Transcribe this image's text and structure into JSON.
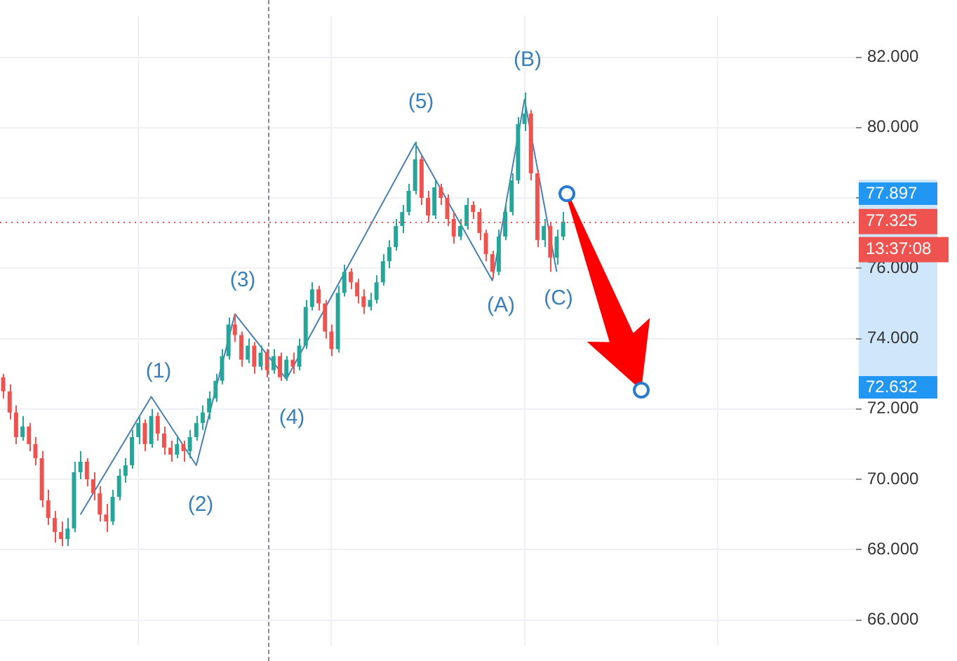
{
  "chart_data": {
    "type": "candlestick",
    "categories": [
      null,
      null,
      null,
      null,
      null,
      null,
      null,
      null,
      null,
      null,
      null,
      null,
      null,
      null,
      null,
      null,
      null,
      null,
      null,
      null,
      null,
      null,
      null,
      null,
      null,
      null,
      null,
      null,
      null,
      null,
      null,
      null,
      null,
      null,
      null,
      null,
      null,
      null,
      null,
      null,
      null,
      null,
      null,
      null,
      null,
      null,
      null,
      null,
      null,
      null,
      null,
      null,
      null,
      null,
      null,
      null,
      null,
      null,
      null,
      null,
      null,
      null,
      null,
      null,
      null,
      null,
      null,
      null,
      null,
      null,
      null,
      null,
      null,
      null,
      null,
      null,
      null,
      null,
      null,
      null,
      null,
      null,
      null,
      null,
      null,
      null,
      null,
      null,
      null,
      null,
      null,
      null,
      null,
      null,
      null,
      null,
      null,
      null,
      null,
      null,
      null,
      null,
      null,
      null,
      null,
      null,
      null,
      null,
      null,
      null,
      null,
      null,
      null,
      null,
      null,
      null,
      null,
      null,
      null,
      null,
      null,
      null,
      null,
      null,
      null,
      null,
      null,
      null,
      null,
      null,
      null,
      null,
      null
    ],
    "series": [
      {
        "ohlc": [
          [
            72.9,
            73.0,
            72.3,
            72.5
          ],
          [
            72.5,
            72.7,
            71.7,
            71.9
          ],
          [
            71.9,
            72.1,
            71.0,
            71.2
          ],
          [
            71.2,
            71.8,
            71.1,
            71.5
          ],
          [
            71.5,
            71.6,
            70.8,
            71.0
          ],
          [
            71.0,
            71.2,
            70.4,
            70.6
          ],
          [
            70.6,
            70.8,
            69.2,
            69.4
          ],
          [
            69.4,
            69.7,
            68.7,
            68.9
          ],
          [
            68.9,
            69.1,
            68.2,
            68.5
          ],
          [
            68.5,
            68.8,
            68.1,
            68.3
          ],
          [
            68.3,
            68.9,
            68.1,
            68.6
          ],
          [
            68.6,
            70.5,
            68.5,
            70.2
          ],
          [
            70.2,
            70.8,
            70.0,
            70.5
          ],
          [
            70.5,
            70.6,
            69.8,
            70.0
          ],
          [
            70.0,
            70.2,
            69.4,
            69.6
          ],
          [
            69.6,
            69.8,
            68.8,
            69.0
          ],
          [
            69.0,
            69.3,
            68.5,
            68.8
          ],
          [
            68.8,
            69.7,
            68.7,
            69.5
          ],
          [
            69.5,
            70.3,
            69.4,
            70.1
          ],
          [
            70.1,
            70.6,
            69.9,
            70.4
          ],
          [
            70.4,
            71.4,
            70.3,
            71.2
          ],
          [
            71.2,
            71.8,
            71.0,
            71.6
          ],
          [
            71.6,
            71.7,
            70.8,
            71.0
          ],
          [
            71.0,
            72.0,
            70.9,
            71.8
          ],
          [
            71.8,
            71.9,
            71.1,
            71.3
          ],
          [
            71.3,
            71.5,
            70.7,
            70.9
          ],
          [
            70.9,
            71.1,
            70.5,
            70.7
          ],
          [
            70.7,
            71.2,
            70.6,
            71.0
          ],
          [
            71.0,
            71.1,
            70.5,
            70.8
          ],
          [
            70.8,
            71.4,
            70.6,
            71.2
          ],
          [
            71.2,
            71.8,
            71.1,
            71.6
          ],
          [
            71.6,
            72.1,
            71.4,
            71.9
          ],
          [
            71.9,
            72.5,
            71.7,
            72.3
          ],
          [
            72.3,
            73.0,
            72.2,
            72.8
          ],
          [
            72.8,
            73.7,
            72.7,
            73.5
          ],
          [
            73.5,
            74.6,
            73.4,
            74.4
          ],
          [
            74.4,
            74.7,
            73.9,
            74.1
          ],
          [
            74.1,
            74.2,
            73.2,
            73.4
          ],
          [
            73.4,
            74.0,
            73.3,
            73.8
          ],
          [
            73.8,
            73.9,
            73.0,
            73.2
          ],
          [
            73.2,
            73.8,
            73.1,
            73.6
          ],
          [
            73.6,
            73.7,
            72.9,
            73.1
          ],
          [
            73.1,
            73.7,
            73.0,
            73.5
          ],
          [
            73.5,
            73.6,
            72.8,
            72.9
          ],
          [
            72.9,
            73.5,
            72.8,
            73.4
          ],
          [
            73.4,
            73.6,
            73.0,
            73.2
          ],
          [
            73.2,
            74.0,
            73.1,
            73.8
          ],
          [
            73.8,
            75.1,
            73.7,
            74.9
          ],
          [
            74.9,
            75.6,
            74.8,
            75.4
          ],
          [
            75.4,
            75.5,
            74.8,
            75.0
          ],
          [
            75.0,
            75.1,
            74.0,
            74.2
          ],
          [
            74.2,
            74.4,
            73.5,
            73.7
          ],
          [
            73.7,
            75.5,
            73.6,
            75.3
          ],
          [
            75.3,
            76.1,
            75.2,
            75.9
          ],
          [
            75.9,
            76.0,
            75.4,
            75.6
          ],
          [
            75.6,
            75.7,
            75.0,
            75.2
          ],
          [
            75.2,
            75.4,
            74.7,
            74.9
          ],
          [
            74.9,
            75.3,
            74.8,
            75.1
          ],
          [
            75.1,
            75.8,
            75.0,
            75.6
          ],
          [
            75.6,
            76.4,
            75.5,
            76.2
          ],
          [
            76.2,
            76.8,
            76.0,
            76.6
          ],
          [
            76.6,
            77.4,
            76.5,
            77.2
          ],
          [
            77.2,
            77.8,
            77.0,
            77.6
          ],
          [
            77.6,
            78.4,
            77.5,
            78.2
          ],
          [
            78.2,
            79.6,
            78.1,
            79.1
          ],
          [
            79.1,
            79.2,
            77.8,
            78.0
          ],
          [
            78.0,
            78.2,
            77.3,
            77.5
          ],
          [
            77.5,
            78.5,
            77.4,
            78.3
          ],
          [
            78.3,
            78.4,
            77.8,
            78.0
          ],
          [
            78.0,
            78.1,
            77.2,
            77.4
          ],
          [
            77.4,
            77.6,
            76.7,
            76.9
          ],
          [
            76.9,
            77.4,
            76.8,
            77.2
          ],
          [
            77.2,
            78.0,
            77.1,
            77.8
          ],
          [
            77.8,
            77.9,
            77.4,
            77.6
          ],
          [
            77.6,
            77.7,
            76.8,
            77.0
          ],
          [
            77.0,
            77.1,
            76.2,
            76.4
          ],
          [
            76.4,
            76.5,
            75.7,
            75.9
          ],
          [
            75.9,
            77.1,
            75.8,
            76.9
          ],
          [
            76.9,
            77.8,
            76.8,
            77.6
          ],
          [
            77.6,
            78.7,
            77.5,
            78.5
          ],
          [
            78.5,
            80.3,
            78.4,
            80.1
          ],
          [
            80.1,
            81.0,
            79.9,
            80.4
          ],
          [
            80.4,
            80.5,
            78.5,
            78.7
          ],
          [
            78.7,
            78.8,
            76.6,
            76.8
          ],
          [
            76.8,
            77.4,
            76.6,
            77.2
          ],
          [
            77.2,
            77.3,
            75.9,
            76.3
          ],
          [
            76.3,
            77.1,
            76.1,
            76.9
          ],
          [
            76.9,
            77.6,
            76.8,
            77.325
          ],
          null,
          null,
          null,
          null,
          null,
          null,
          null,
          null,
          null,
          null,
          null,
          null,
          null,
          null,
          null,
          null,
          null,
          null,
          null,
          null,
          null,
          null,
          null,
          null,
          null,
          null,
          null,
          null,
          null,
          null,
          null,
          null,
          null,
          null,
          null,
          null,
          null,
          null,
          null,
          null,
          null,
          null,
          null,
          null,
          null
        ],
        "colors": [
          "#ef5350",
          "#ef5350",
          "#ef5350",
          "#26a69a",
          "#ef5350",
          "#ef5350",
          "#ef5350",
          "#ef5350",
          "#ef5350",
          "#ef5350",
          "#26a69a",
          "#26a69a",
          "#26a69a",
          "#ef5350",
          "#ef5350",
          "#ef5350",
          "#ef5350",
          "#26a69a",
          "#26a69a",
          "#26a69a",
          "#26a69a",
          "#26a69a",
          "#ef5350",
          "#26a69a",
          "#ef5350",
          "#ef5350",
          "#ef5350",
          "#26a69a",
          "#ef5350",
          "#26a69a",
          "#26a69a",
          "#26a69a",
          "#26a69a",
          "#26a69a",
          "#26a69a",
          "#26a69a",
          "#ef5350",
          "#ef5350",
          "#26a69a",
          "#ef5350",
          "#26a69a",
          "#ef5350",
          "#26a69a",
          "#ef5350",
          "#26a69a",
          "#ef5350",
          "#26a69a",
          "#26a69a",
          "#26a69a",
          "#ef5350",
          "#ef5350",
          "#ef5350",
          "#26a69a",
          "#26a69a",
          "#ef5350",
          "#ef5350",
          "#ef5350",
          "#26a69a",
          "#26a69a",
          "#26a69a",
          "#26a69a",
          "#26a69a",
          "#26a69a",
          "#26a69a",
          "#26a69a",
          "#ef5350",
          "#ef5350",
          "#26a69a",
          "#ef5350",
          "#ef5350",
          "#ef5350",
          "#26a69a",
          "#26a69a",
          "#ef5350",
          "#ef5350",
          "#ef5350",
          "#ef5350",
          "#26a69a",
          "#26a69a",
          "#26a69a",
          "#26a69a",
          "#26a69a",
          "#ef5350",
          "#ef5350",
          "#26a69a",
          "#ef5350",
          "#26a69a",
          "#26a69a",
          null,
          null,
          null,
          null,
          null,
          null,
          null,
          null,
          null,
          null,
          null,
          null,
          null,
          null,
          null,
          null,
          null,
          null,
          null,
          null,
          null,
          null,
          null,
          null,
          null,
          null,
          null,
          null,
          null,
          null,
          null,
          null,
          null,
          null,
          null,
          null,
          null,
          null,
          null,
          null,
          null,
          null,
          null,
          null,
          null
        ]
      },
      {
        "type": "line",
        "color": "#4a7fb5",
        "values": [
          null,
          null,
          null,
          null,
          null,
          null,
          null,
          null,
          null,
          null,
          null,
          null,
          69.0,
          null,
          null,
          null,
          null,
          null,
          null,
          null,
          null,
          null,
          null,
          72.35,
          null,
          null,
          null,
          null,
          null,
          null,
          70.4,
          null,
          null,
          null,
          null,
          null,
          74.7,
          null,
          null,
          null,
          null,
          null,
          null,
          null,
          72.85,
          null,
          null,
          null,
          null,
          null,
          null,
          null,
          null,
          null,
          null,
          null,
          null,
          null,
          null,
          null,
          null,
          null,
          null,
          null,
          79.55,
          null,
          null,
          null,
          null,
          null,
          null,
          null,
          null,
          null,
          null,
          null,
          75.65,
          null,
          null,
          null,
          null,
          80.8,
          null,
          null,
          null,
          null,
          75.9,
          null,
          null,
          null,
          null,
          null,
          null,
          null,
          null,
          null,
          null,
          null,
          null,
          null,
          null,
          null,
          null,
          null,
          null,
          null,
          null,
          null,
          null,
          null,
          null,
          null,
          null,
          null,
          null,
          null,
          null,
          null,
          null,
          null,
          null,
          null,
          null,
          null,
          null,
          null,
          null,
          null,
          null,
          null,
          null,
          null,
          null
        ]
      }
    ],
    "ylim": [
      65.28,
      83.18
    ],
    "yticks": [
      {
        "value": 66,
        "label": "66.000"
      },
      {
        "value": 68,
        "label": "68.000"
      },
      {
        "value": 70,
        "label": "70.000"
      },
      {
        "value": 72,
        "label": "72.000"
      },
      {
        "value": 74,
        "label": "74.000"
      },
      {
        "value": 76,
        "label": "76.000"
      },
      {
        "value": 78,
        "label": null
      },
      {
        "value": 80,
        "label": "80.000"
      },
      {
        "value": 82,
        "label": "82.000"
      }
    ],
    "ref_lines": [
      {
        "axis": "y",
        "value": 77.325,
        "label": "77.325",
        "color": "#ef5350",
        "line_style": "dotted"
      }
    ],
    "annotations": [
      "(1)",
      "(2)",
      "(3)",
      "(4)",
      "(5)",
      "(A)",
      "(B)",
      "(C)",
      "13:37:08",
      "77.897",
      "72.632"
    ],
    "grid": true,
    "legend": false,
    "tick_labels": "y"
  }
}
